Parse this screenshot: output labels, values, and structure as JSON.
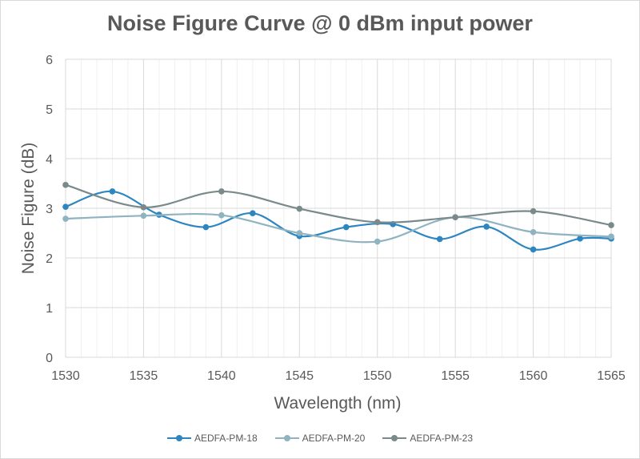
{
  "chart_data": {
    "type": "line",
    "title": "Noise Figure Curve @ 0 dBm input power",
    "xlabel": "Wavelength (nm)",
    "ylabel": "Noise Figure (dB)",
    "xlim": [
      1530,
      1565
    ],
    "ylim": [
      0,
      6
    ],
    "x_ticks": [
      1530,
      1535,
      1540,
      1545,
      1550,
      1555,
      1560,
      1565
    ],
    "y_ticks": [
      0,
      1,
      2,
      3,
      4,
      5,
      6
    ],
    "x_minor_step": 1,
    "grid": true,
    "smooth": true,
    "legend_position": "bottom",
    "series": [
      {
        "name": "AEDFA-PM-18",
        "color": "#2e86c1",
        "points": [
          [
            1530,
            3.03
          ],
          [
            1533,
            3.34
          ],
          [
            1536,
            2.87
          ],
          [
            1539,
            2.62
          ],
          [
            1542,
            2.9
          ],
          [
            1545,
            2.44
          ],
          [
            1548,
            2.62
          ],
          [
            1551,
            2.68
          ],
          [
            1554,
            2.38
          ],
          [
            1557,
            2.63
          ],
          [
            1560,
            2.17
          ],
          [
            1563,
            2.39
          ],
          [
            1565,
            2.39
          ]
        ]
      },
      {
        "name": "AEDFA-PM-20",
        "color": "#8fb3c0",
        "points": [
          [
            1530,
            2.79
          ],
          [
            1535,
            2.85
          ],
          [
            1540,
            2.86
          ],
          [
            1545,
            2.5
          ],
          [
            1550,
            2.33
          ],
          [
            1555,
            2.82
          ],
          [
            1560,
            2.52
          ],
          [
            1565,
            2.43
          ]
        ]
      },
      {
        "name": "AEDFA-PM-23",
        "color": "#7a8a8a",
        "points": [
          [
            1530,
            3.47
          ],
          [
            1535,
            3.02
          ],
          [
            1540,
            3.34
          ],
          [
            1545,
            2.99
          ],
          [
            1550,
            2.72
          ],
          [
            1555,
            2.82
          ],
          [
            1560,
            2.94
          ],
          [
            1565,
            2.66
          ]
        ]
      }
    ]
  }
}
